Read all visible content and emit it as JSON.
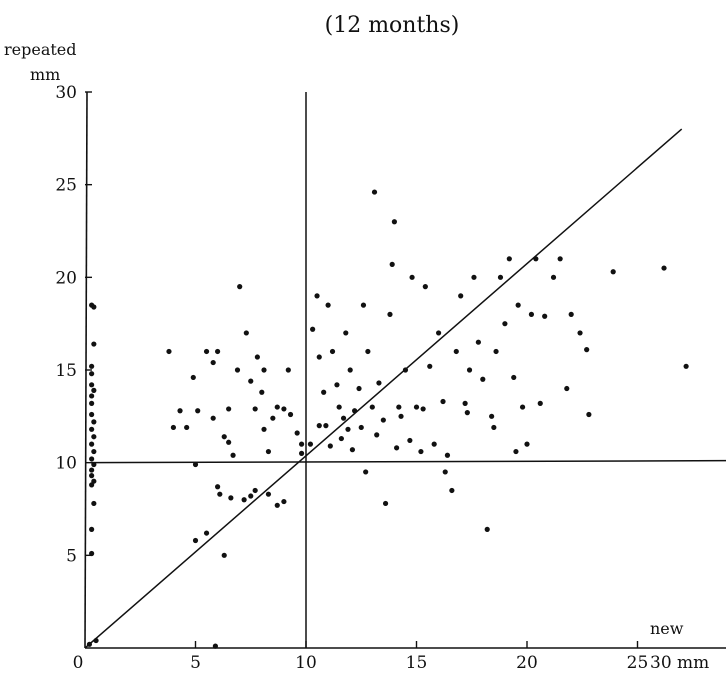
{
  "chart_data": {
    "type": "scatter",
    "title": "(12 months)",
    "ylabel_line1": "repeated",
    "ylabel_line2": "mm",
    "xlabel": "new",
    "x_axis_unit_label": "30 mm",
    "xlim": [
      0,
      30
    ],
    "ylim": [
      0,
      30
    ],
    "x_ticks": [
      "0",
      "5",
      "10",
      "15",
      "20",
      "25"
    ],
    "y_ticks": [
      "5",
      "10",
      "15",
      "20",
      "25",
      "30"
    ],
    "grid": false,
    "reference_lines": [
      {
        "kind": "vertical",
        "x": 10
      },
      {
        "kind": "horizontal",
        "y": 10
      },
      {
        "kind": "diagonal",
        "from": [
          0,
          0
        ],
        "to": [
          27,
          28
        ]
      }
    ],
    "points": [
      [
        0.3,
        18.5
      ],
      [
        0.4,
        18.4
      ],
      [
        0.4,
        16.4
      ],
      [
        0.3,
        15.2
      ],
      [
        0.3,
        14.8
      ],
      [
        0.3,
        14.2
      ],
      [
        0.4,
        13.9
      ],
      [
        0.3,
        13.6
      ],
      [
        0.3,
        13.2
      ],
      [
        0.3,
        12.6
      ],
      [
        0.4,
        12.2
      ],
      [
        0.3,
        11.8
      ],
      [
        0.4,
        11.4
      ],
      [
        0.3,
        11.0
      ],
      [
        0.4,
        10.6
      ],
      [
        0.3,
        10.2
      ],
      [
        0.4,
        9.9
      ],
      [
        0.3,
        9.6
      ],
      [
        0.3,
        9.3
      ],
      [
        0.4,
        9.0
      ],
      [
        0.3,
        8.8
      ],
      [
        0.4,
        7.8
      ],
      [
        0.3,
        6.4
      ],
      [
        0.3,
        5.1
      ],
      [
        0.2,
        0.2
      ],
      [
        0.5,
        0.4
      ],
      [
        3.8,
        16.0
      ],
      [
        4.0,
        11.9
      ],
      [
        4.3,
        12.8
      ],
      [
        4.6,
        11.9
      ],
      [
        4.9,
        14.6
      ],
      [
        5.1,
        12.8
      ],
      [
        5.0,
        9.9
      ],
      [
        5.5,
        16.0
      ],
      [
        5.8,
        15.4
      ],
      [
        6.0,
        16.0
      ],
      [
        5.8,
        12.4
      ],
      [
        6.3,
        11.4
      ],
      [
        6.5,
        12.9
      ],
      [
        6.5,
        11.1
      ],
      [
        6.7,
        10.4
      ],
      [
        6.9,
        15.0
      ],
      [
        7.0,
        19.5
      ],
      [
        7.3,
        17.0
      ],
      [
        7.5,
        14.4
      ],
      [
        7.8,
        15.7
      ],
      [
        7.7,
        12.9
      ],
      [
        8.0,
        13.8
      ],
      [
        8.1,
        15.0
      ],
      [
        8.1,
        11.8
      ],
      [
        8.3,
        10.6
      ],
      [
        8.5,
        12.4
      ],
      [
        8.7,
        13.0
      ],
      [
        9.0,
        12.9
      ],
      [
        9.2,
        15.0
      ],
      [
        9.3,
        12.6
      ],
      [
        9.6,
        11.6
      ],
      [
        9.8,
        11.0
      ],
      [
        9.8,
        10.5
      ],
      [
        6.0,
        8.7
      ],
      [
        6.1,
        8.3
      ],
      [
        6.6,
        8.1
      ],
      [
        7.2,
        8.0
      ],
      [
        7.5,
        8.2
      ],
      [
        7.7,
        8.5
      ],
      [
        8.3,
        8.3
      ],
      [
        8.7,
        7.7
      ],
      [
        9.0,
        7.9
      ],
      [
        5.5,
        6.2
      ],
      [
        5.0,
        5.8
      ],
      [
        6.3,
        5.0
      ],
      [
        5.9,
        0.1
      ],
      [
        10.3,
        17.2
      ],
      [
        10.5,
        19.0
      ],
      [
        10.6,
        15.7
      ],
      [
        10.8,
        13.8
      ],
      [
        10.9,
        12.0
      ],
      [
        11.0,
        18.5
      ],
      [
        11.2,
        16.0
      ],
      [
        11.4,
        14.2
      ],
      [
        11.5,
        13.0
      ],
      [
        11.7,
        12.4
      ],
      [
        11.8,
        17.0
      ],
      [
        11.9,
        11.8
      ],
      [
        12.0,
        15.0
      ],
      [
        12.2,
        12.8
      ],
      [
        12.4,
        14.0
      ],
      [
        12.5,
        11.9
      ],
      [
        12.6,
        18.5
      ],
      [
        12.8,
        16.0
      ],
      [
        13.0,
        13.0
      ],
      [
        13.1,
        24.6
      ],
      [
        13.3,
        14.3
      ],
      [
        13.5,
        12.3
      ],
      [
        13.6,
        7.8
      ],
      [
        13.8,
        18.0
      ],
      [
        13.9,
        20.7
      ],
      [
        14.0,
        23.0
      ],
      [
        14.2,
        13.0
      ],
      [
        14.3,
        12.5
      ],
      [
        14.5,
        15.0
      ],
      [
        14.8,
        20.0
      ],
      [
        15.0,
        13.0
      ],
      [
        15.2,
        10.6
      ],
      [
        15.4,
        19.5
      ],
      [
        15.6,
        15.2
      ],
      [
        15.8,
        11.0
      ],
      [
        16.0,
        17.0
      ],
      [
        16.2,
        13.3
      ],
      [
        16.4,
        10.4
      ],
      [
        16.6,
        8.5
      ],
      [
        16.8,
        16.0
      ],
      [
        17.0,
        19.0
      ],
      [
        17.2,
        13.2
      ],
      [
        17.4,
        15.0
      ],
      [
        17.6,
        20.0
      ],
      [
        17.8,
        16.5
      ],
      [
        18.0,
        14.5
      ],
      [
        18.2,
        6.4
      ],
      [
        18.4,
        12.5
      ],
      [
        18.6,
        16.0
      ],
      [
        18.8,
        20.0
      ],
      [
        19.0,
        17.5
      ],
      [
        19.2,
        21.0
      ],
      [
        19.4,
        14.6
      ],
      [
        19.6,
        18.5
      ],
      [
        19.8,
        13.0
      ],
      [
        20.0,
        11.0
      ],
      [
        20.2,
        18.0
      ],
      [
        20.4,
        21.0
      ],
      [
        20.6,
        13.2
      ],
      [
        20.8,
        17.9
      ],
      [
        21.2,
        20.0
      ],
      [
        21.5,
        21.0
      ],
      [
        21.8,
        14.0
      ],
      [
        22.0,
        18.0
      ],
      [
        22.4,
        17.0
      ],
      [
        22.7,
        16.1
      ],
      [
        22.8,
        12.6
      ],
      [
        23.9,
        20.3
      ],
      [
        26.2,
        20.5
      ],
      [
        27.2,
        15.2
      ],
      [
        10.2,
        11.0
      ],
      [
        10.6,
        12.0
      ],
      [
        11.1,
        10.9
      ],
      [
        11.6,
        11.3
      ],
      [
        12.1,
        10.7
      ],
      [
        12.7,
        9.5
      ],
      [
        13.2,
        11.5
      ],
      [
        14.1,
        10.8
      ],
      [
        14.7,
        11.2
      ],
      [
        15.3,
        12.9
      ],
      [
        16.3,
        9.5
      ],
      [
        17.3,
        12.7
      ],
      [
        18.5,
        11.9
      ],
      [
        19.5,
        10.6
      ]
    ]
  }
}
